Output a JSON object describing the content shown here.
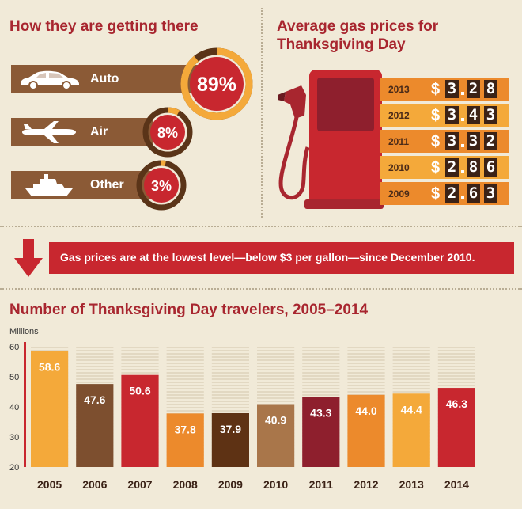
{
  "travel_modes": {
    "title": "How they are getting there",
    "items": [
      {
        "label": "Auto",
        "percent": 89,
        "display": "89%",
        "icon": "car-icon"
      },
      {
        "label": "Air",
        "percent": 8,
        "display": "8%",
        "icon": "airplane-icon"
      },
      {
        "label": "Other",
        "percent": 3,
        "display": "3%",
        "icon": "ship-icon"
      }
    ]
  },
  "gas_prices": {
    "title_line1": "Average gas prices for",
    "title_line2": "Thanksgiving Day",
    "currency": "$",
    "rows": [
      {
        "year": "2013",
        "price": 3.28,
        "digits": [
          "3",
          "2",
          "8"
        ]
      },
      {
        "year": "2012",
        "price": 3.43,
        "digits": [
          "3",
          "4",
          "3"
        ]
      },
      {
        "year": "2011",
        "price": 3.32,
        "digits": [
          "3",
          "3",
          "2"
        ]
      },
      {
        "year": "2010",
        "price": 2.86,
        "digits": [
          "2",
          "8",
          "6"
        ]
      },
      {
        "year": "2009",
        "price": 2.63,
        "digits": [
          "2",
          "6",
          "3"
        ]
      }
    ]
  },
  "banner": {
    "text": "Gas prices are at the lowest level—below $3 per gallon—since December 2010.",
    "icon": "down-arrow-icon"
  },
  "chart_data": {
    "type": "bar",
    "title": "Number of Thanksgiving Day travelers, 2005–2014",
    "ylabel": "Millions",
    "categories": [
      "2005",
      "2006",
      "2007",
      "2008",
      "2009",
      "2010",
      "2011",
      "2012",
      "2013",
      "2014"
    ],
    "values": [
      58.6,
      47.6,
      50.6,
      37.8,
      37.9,
      40.9,
      43.3,
      44.0,
      44.4,
      46.3
    ],
    "value_labels": [
      "58.6",
      "47.6",
      "50.6",
      "37.8",
      "37.9",
      "40.9",
      "43.3",
      "44.0",
      "44.4",
      "46.3"
    ],
    "yticks": [
      20,
      30,
      40,
      50,
      60
    ],
    "ylim": [
      20,
      60
    ],
    "colors": [
      "#f4a93a",
      "#7d4f2f",
      "#c8272f",
      "#ec8a2c",
      "#5e3214",
      "#a9764a",
      "#8e1f2d",
      "#ec8a2c",
      "#f4a93a",
      "#c8272f"
    ]
  }
}
